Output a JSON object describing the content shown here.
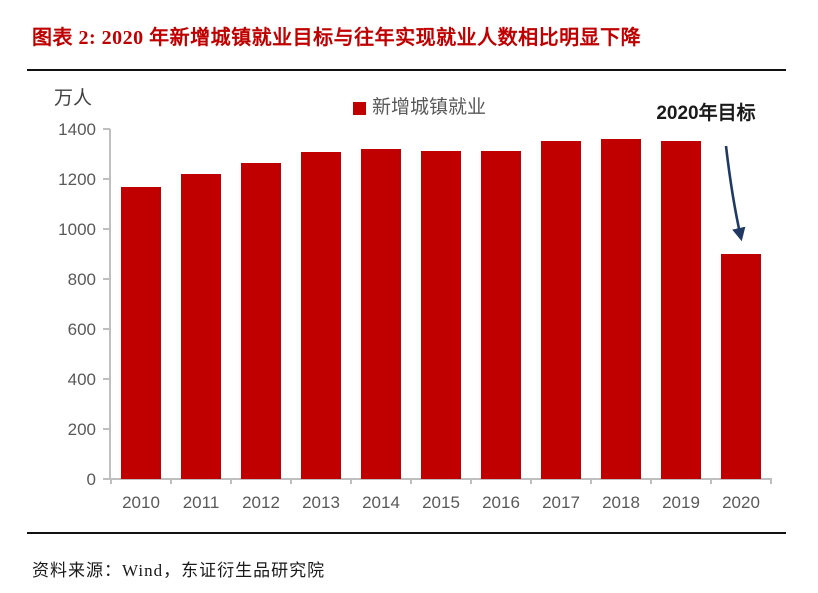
{
  "header": {
    "title": "图表 2: 2020 年新增城镇就业目标与往年实现就业人数相比明显下降"
  },
  "footer": {
    "source": "资料来源：Wind，东证衍生品研究院"
  },
  "chart_data": {
    "type": "bar",
    "title": "图表 2: 2020 年新增城镇就业目标与往年实现就业人数相比明显下降",
    "unit_label": "万人",
    "legend": [
      {
        "label": "新增城镇就业",
        "color": "#C00000"
      }
    ],
    "legend_position": "top-center",
    "categories": [
      "2010",
      "2011",
      "2012",
      "2013",
      "2014",
      "2015",
      "2016",
      "2017",
      "2018",
      "2019",
      "2020"
    ],
    "series": [
      {
        "name": "新增城镇就业",
        "values": [
          1168,
          1221,
          1266,
          1310,
          1322,
          1312,
          1314,
          1351,
          1361,
          1352,
          900
        ]
      }
    ],
    "annotation": {
      "text": "2020年目标",
      "points_to": "2020"
    },
    "xlabel": "",
    "ylabel": "万人",
    "ylim": [
      0,
      1400
    ],
    "y_ticks": [
      0,
      200,
      400,
      600,
      800,
      1000,
      1200,
      1400
    ],
    "grid": false,
    "colors": {
      "bar": "#C00000",
      "arrow": "#1F3864",
      "axis": "#BFBFBF",
      "tick_label": "#595959",
      "title": "#C00000"
    }
  }
}
